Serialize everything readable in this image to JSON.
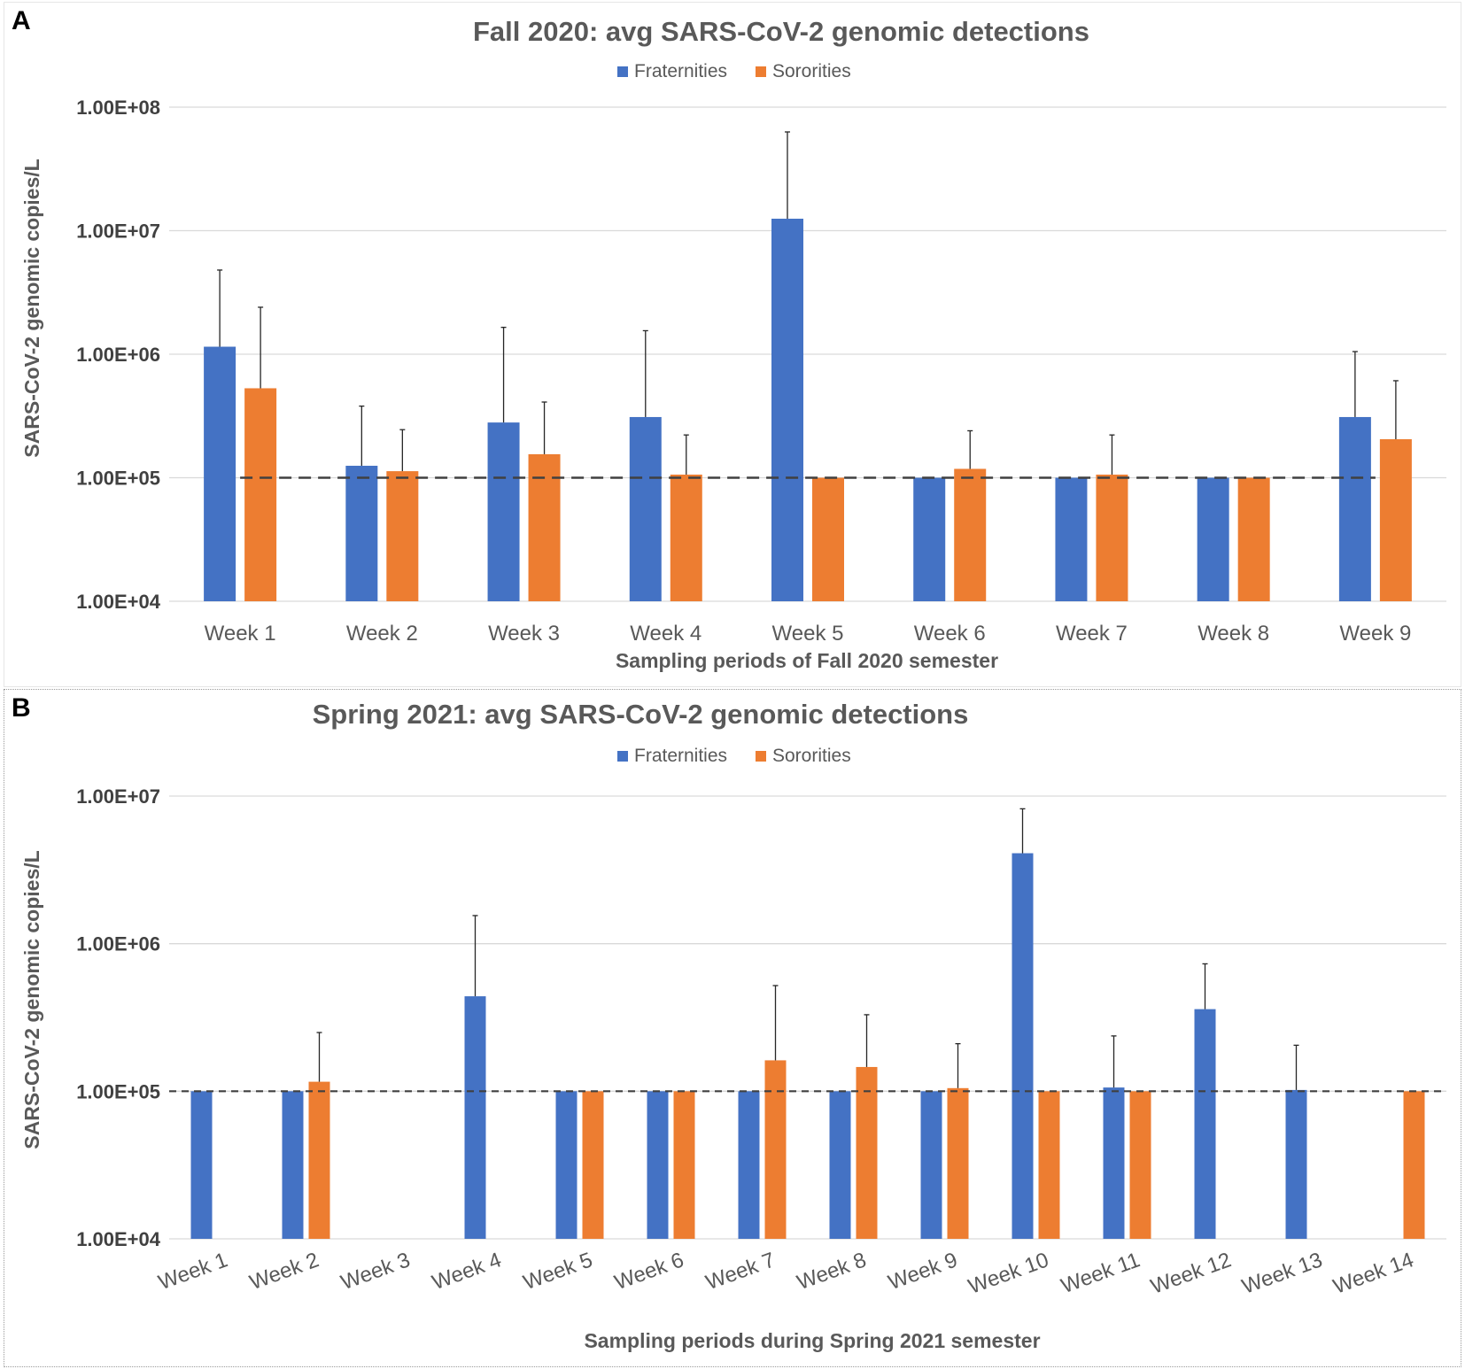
{
  "charts": {
    "a": {
      "panel_label": "A",
      "chart_data": {
        "type": "bar",
        "title": "Fall 2020: avg SARS-CoV-2 genomic detections",
        "xlabel": "Sampling periods of Fall 2020 semester",
        "ylabel": "SARS-CoV-2 genomic copies/L",
        "yscale": "log",
        "ylim": [
          10000,
          100000000
        ],
        "ytick_values": [
          10000,
          100000,
          1000000,
          10000000,
          100000000
        ],
        "ytick_labels": [
          "1.00E+04",
          "1.00E+05",
          "1.00E+06",
          "1.00E+07",
          "1.00E+08"
        ],
        "legend_position": "top-center",
        "reference_line": 100000,
        "categories": [
          "Week 1",
          "Week 2",
          "Week 3",
          "Week 4",
          "Week 5",
          "Week 6",
          "Week 7",
          "Week 8",
          "Week 9"
        ],
        "series": [
          {
            "name": "Fraternities",
            "color": "#4472C4",
            "values": [
              1150000,
              125000,
              280000,
              310000,
              12500000,
              100000,
              100000,
              100000,
              310000
            ],
            "error_upper": [
              4800000,
              380000,
              1650000,
              1550000,
              63000000,
              null,
              null,
              null,
              1050000
            ]
          },
          {
            "name": "Sororities",
            "color": "#ED7D31",
            "values": [
              530000,
              113000,
              155000,
              106000,
              100000,
              118000,
              106000,
              100000,
              205000
            ],
            "error_upper": [
              2400000,
              245000,
              410000,
              222000,
              null,
              240000,
              222000,
              null,
              610000
            ]
          }
        ]
      }
    },
    "b": {
      "panel_label": "B",
      "chart_data": {
        "type": "bar",
        "title": "Spring 2021: avg SARS-CoV-2 genomic detections",
        "xlabel": "Sampling periods during Spring 2021 semester",
        "ylabel": "SARS-CoV-2 genomic copies/L",
        "yscale": "log",
        "ylim": [
          10000,
          10000000
        ],
        "ytick_values": [
          10000,
          100000,
          1000000,
          10000000
        ],
        "ytick_labels": [
          "1.00E+04",
          "1.00E+05",
          "1.00E+06",
          "1.00E+07"
        ],
        "legend_position": "top-center",
        "reference_line": 100000,
        "categories": [
          "Week 1",
          "Week 2",
          "Week 3",
          "Week 4",
          "Week 5",
          "Week 6",
          "Week 7",
          "Week 8",
          "Week 9",
          "Week 10",
          "Week 11",
          "Week 12",
          "Week 13",
          "Week 14"
        ],
        "series": [
          {
            "name": "Fraternities",
            "color": "#4472C4",
            "values": [
              100000,
              100000,
              null,
              440000,
              100000,
              100000,
              100000,
              100000,
              100000,
              4100000,
              106000,
              360000,
              102000,
              null
            ],
            "error_upper": [
              null,
              null,
              null,
              1550000,
              null,
              null,
              null,
              null,
              null,
              8200000,
              237000,
              730000,
              205000,
              null
            ]
          },
          {
            "name": "Sororities",
            "color": "#ED7D31",
            "values": [
              null,
              116000,
              null,
              null,
              100000,
              100000,
              162000,
              146000,
              105000,
              100000,
              100000,
              null,
              null,
              100000
            ],
            "error_upper": [
              null,
              250000,
              null,
              null,
              null,
              null,
              520000,
              330000,
              210000,
              null,
              null,
              null,
              null,
              null
            ]
          }
        ]
      }
    }
  }
}
